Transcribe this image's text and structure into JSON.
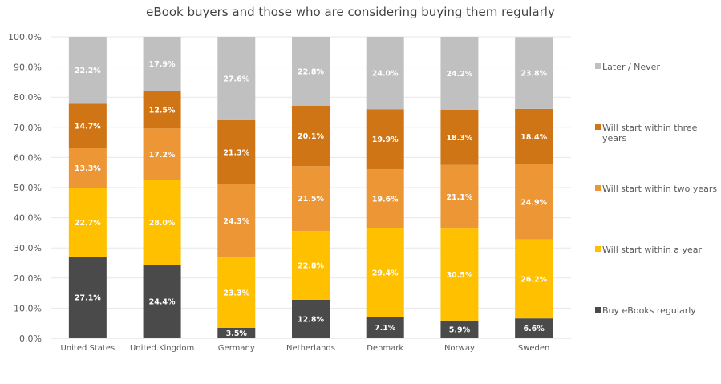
{
  "chart_data": {
    "type": "bar",
    "stacked": true,
    "title": "eBook buyers and those who are considering buying them regularly",
    "xlabel": "",
    "ylabel": "",
    "ylim": [
      0,
      100
    ],
    "ytick_labels": [
      "0.0%",
      "10.0%",
      "20.0%",
      "30.0%",
      "40.0%",
      "50.0%",
      "60.0%",
      "70.0%",
      "80.0%",
      "90.0%",
      "100.0%"
    ],
    "grid": true,
    "legend_position": "right",
    "categories": [
      "United States",
      "United Kingdom",
      "Germany",
      "Netherlands",
      "Denmark",
      "Norway",
      "Sweden"
    ],
    "series": [
      {
        "name": "Buy eBooks regularly",
        "color": "#4a4a4a",
        "values": [
          27.1,
          24.4,
          3.5,
          12.8,
          7.1,
          5.9,
          6.6
        ],
        "labels": [
          "27.1%",
          "24.4%",
          "3.5%",
          "12.8%",
          "7.1%",
          "5.9%",
          "6.6%"
        ]
      },
      {
        "name": "Will start within a year",
        "color": "#ffc000",
        "values": [
          22.7,
          28.0,
          23.3,
          22.8,
          29.4,
          30.5,
          26.2
        ],
        "labels": [
          "22.7%",
          "28.0%",
          "23.3%",
          "22.8%",
          "29.4%",
          "30.5%",
          "26.2%"
        ]
      },
      {
        "name": "Will start within two years",
        "color": "#ed9635",
        "values": [
          13.3,
          17.2,
          24.3,
          21.5,
          19.6,
          21.1,
          24.9
        ],
        "labels": [
          "13.3%",
          "17.2%",
          "24.3%",
          "21.5%",
          "19.6%",
          "21.1%",
          "24.9%"
        ]
      },
      {
        "name": "Will start within three years",
        "legend_lines": [
          "Will start within three",
          "years"
        ],
        "color": "#d07515",
        "values": [
          14.7,
          12.5,
          21.3,
          20.1,
          19.9,
          18.3,
          18.4
        ],
        "labels": [
          "14.7%",
          "12.5%",
          "21.3%",
          "20.1%",
          "19.9%",
          "18.3%",
          "18.4%"
        ]
      },
      {
        "name": "Later / Never",
        "color": "#c0c0c0",
        "values": [
          22.2,
          17.9,
          27.6,
          22.8,
          24.0,
          24.2,
          23.8
        ],
        "labels": [
          "22.2%",
          "17.9%",
          "27.6%",
          "22.8%",
          "24.0%",
          "24.2%",
          "23.8%"
        ]
      }
    ],
    "legend_order": [
      "Later / Never",
      "Will start within three years",
      "Will start within two years",
      "Will start within a year",
      "Buy eBooks regularly"
    ]
  }
}
